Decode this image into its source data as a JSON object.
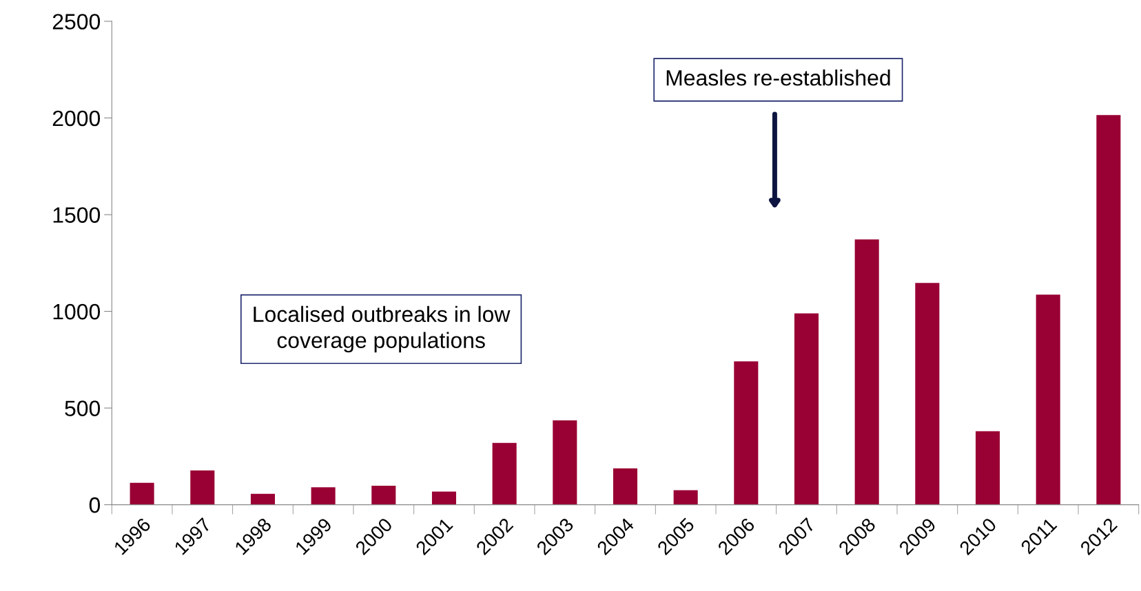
{
  "chart_data": {
    "type": "bar",
    "categories": [
      "1996",
      "1997",
      "1998",
      "1999",
      "2000",
      "2001",
      "2002",
      "2003",
      "2004",
      "2005",
      "2006",
      "2007",
      "2008",
      "2009",
      "2010",
      "2011",
      "2012"
    ],
    "values": [
      113,
      177,
      56,
      90,
      98,
      68,
      320,
      436,
      188,
      75,
      741,
      989,
      1372,
      1147,
      380,
      1086,
      2015
    ],
    "color": "#990033",
    "ylim": [
      0,
      2500
    ],
    "yticks": [
      0,
      500,
      1000,
      1500,
      2000,
      2500
    ],
    "grid": false,
    "legend": false,
    "annotations": [
      "Measles re-established",
      "Localised outbreaks in low\ncoverage populations"
    ]
  }
}
